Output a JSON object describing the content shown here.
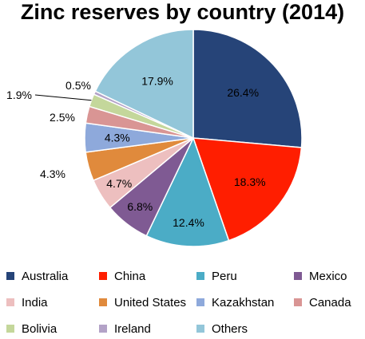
{
  "chart_data": {
    "type": "pie",
    "title": "Zinc reserves by country (2014)",
    "start_angle_deg": 0,
    "direction": "clockwise",
    "legend_position": "bottom",
    "slices": [
      {
        "name": "Australia",
        "value": 26.4,
        "label": "26.4%",
        "color": "#264478"
      },
      {
        "name": "China",
        "value": 18.3,
        "label": "18.3%",
        "color": "#FF1E00"
      },
      {
        "name": "Peru",
        "value": 12.4,
        "label": "12.4%",
        "color": "#4BACC6"
      },
      {
        "name": "Mexico",
        "value": 6.8,
        "label": "6.8%",
        "color": "#7F5A93"
      },
      {
        "name": "India",
        "value": 4.7,
        "label": "4.7%",
        "color": "#EDBFBF"
      },
      {
        "name": "United States",
        "value": 4.3,
        "label": "4.3%",
        "color": "#E08A3C"
      },
      {
        "name": "Kazakhstan",
        "value": 4.3,
        "label": "4.3%",
        "color": "#8EA9DB"
      },
      {
        "name": "Canada",
        "value": 2.5,
        "label": "2.5%",
        "color": "#D99594"
      },
      {
        "name": "Bolivia",
        "value": 1.9,
        "label": "1.9%",
        "color": "#C4D79B"
      },
      {
        "name": "Ireland",
        "value": 0.5,
        "label": "0.5%",
        "color": "#B3A2C7"
      },
      {
        "name": "Others",
        "value": 17.9,
        "label": "17.9%",
        "color": "#93C6D9"
      }
    ]
  }
}
